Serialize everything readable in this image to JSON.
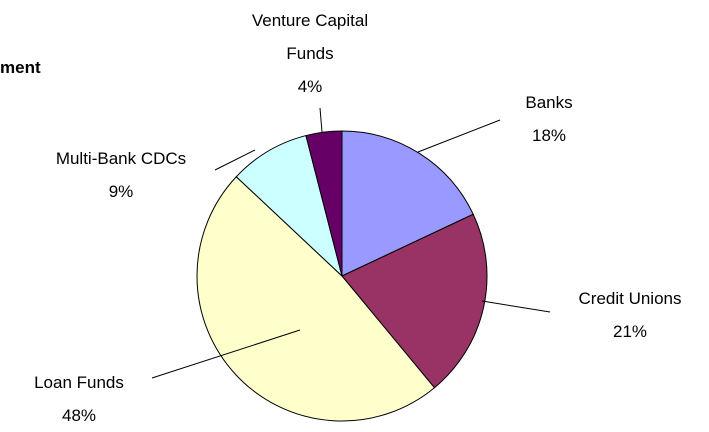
{
  "chart_data": {
    "type": "pie",
    "title": "ment",
    "categories": [
      "Banks",
      "Credit Unions",
      "Loan Funds",
      "Multi-Bank CDCs",
      "Venture Capital Funds"
    ],
    "values": [
      18,
      21,
      48,
      9,
      4
    ],
    "value_labels": [
      "18%",
      "21%",
      "48%",
      "9%",
      "4%"
    ],
    "colors": [
      "#9999ff",
      "#993366",
      "#ffffcc",
      "#ccffff",
      "#660066"
    ]
  }
}
